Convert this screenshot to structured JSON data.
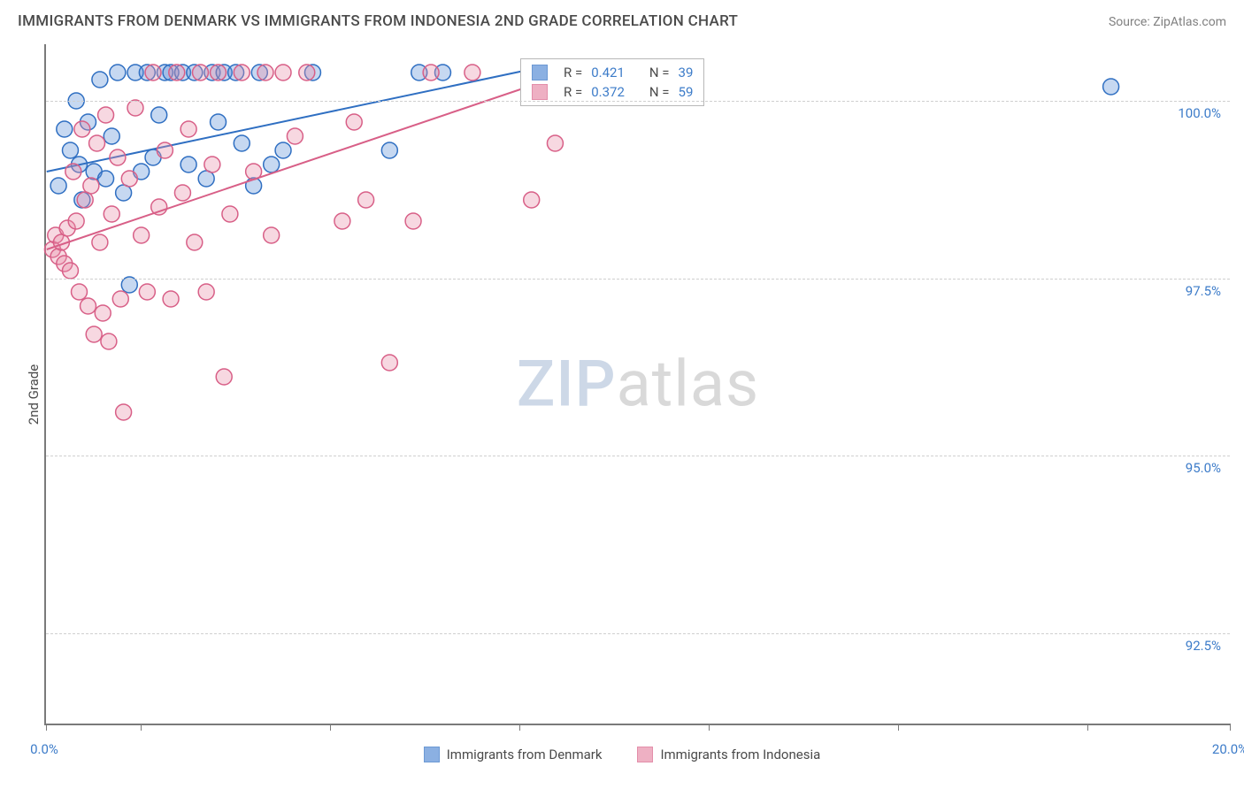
{
  "header": {
    "title": "IMMIGRANTS FROM DENMARK VS IMMIGRANTS FROM INDONESIA 2ND GRADE CORRELATION CHART",
    "source": "Source: ZipAtlas.com"
  },
  "ylabel": "2nd Grade",
  "watermark": {
    "part1": "ZIP",
    "part2": "atlas"
  },
  "chart": {
    "type": "scatter",
    "background_color": "#ffffff",
    "grid_color": "#cfcfcf",
    "axis_color": "#7a7a7a",
    "tick_label_color": "#3d7cc9",
    "label_fontsize": 15,
    "title_fontsize": 17,
    "xlim": [
      0.0,
      20.0
    ],
    "ylim": [
      91.2,
      100.8
    ],
    "yticks": [
      {
        "value": 100.0,
        "label": "100.0%"
      },
      {
        "value": 97.5,
        "label": "97.5%"
      },
      {
        "value": 95.0,
        "label": "95.0%"
      },
      {
        "value": 92.5,
        "label": "92.5%"
      }
    ],
    "xtick_positions_pct": [
      0,
      8,
      24,
      40,
      56,
      72,
      88,
      100
    ],
    "xtick_labels": {
      "left": "0.0%",
      "right": "20.0%"
    },
    "marker_radius": 9,
    "marker_stroke_width": 1.5,
    "marker_fill_opacity": 0.35,
    "trend_line_width": 2,
    "series": [
      {
        "name": "Immigrants from Denmark",
        "color": "#5b8fd6",
        "stroke": "#2f6fc2",
        "stats": {
          "R": "0.421",
          "N": "39"
        },
        "trend": {
          "x1": 0.0,
          "y1": 99.0,
          "x2": 8.5,
          "y2": 100.5
        },
        "points": [
          [
            0.2,
            98.8
          ],
          [
            0.3,
            99.6
          ],
          [
            0.4,
            99.3
          ],
          [
            0.5,
            100.0
          ],
          [
            0.55,
            99.1
          ],
          [
            0.6,
            98.6
          ],
          [
            0.7,
            99.7
          ],
          [
            0.8,
            99.0
          ],
          [
            0.9,
            100.3
          ],
          [
            1.0,
            98.9
          ],
          [
            1.1,
            99.5
          ],
          [
            1.2,
            100.4
          ],
          [
            1.3,
            98.7
          ],
          [
            1.4,
            97.4
          ],
          [
            1.5,
            100.4
          ],
          [
            1.6,
            99.0
          ],
          [
            1.7,
            100.4
          ],
          [
            1.8,
            99.2
          ],
          [
            1.9,
            99.8
          ],
          [
            2.0,
            100.4
          ],
          [
            2.1,
            100.4
          ],
          [
            2.3,
            100.4
          ],
          [
            2.4,
            99.1
          ],
          [
            2.5,
            100.4
          ],
          [
            2.7,
            98.9
          ],
          [
            2.8,
            100.4
          ],
          [
            2.9,
            99.7
          ],
          [
            3.0,
            100.4
          ],
          [
            3.2,
            100.4
          ],
          [
            3.3,
            99.4
          ],
          [
            3.5,
            98.8
          ],
          [
            3.6,
            100.4
          ],
          [
            3.8,
            99.1
          ],
          [
            4.0,
            99.3
          ],
          [
            4.5,
            100.4
          ],
          [
            5.8,
            99.3
          ],
          [
            6.3,
            100.4
          ],
          [
            6.7,
            100.4
          ],
          [
            18.0,
            100.2
          ]
        ]
      },
      {
        "name": "Immigrants from Indonesia",
        "color": "#e890aa",
        "stroke": "#d85f87",
        "stats": {
          "R": "0.372",
          "N": "59"
        },
        "trend": {
          "x1": 0.0,
          "y1": 97.9,
          "x2": 8.5,
          "y2": 100.3
        },
        "points": [
          [
            0.1,
            97.9
          ],
          [
            0.15,
            98.1
          ],
          [
            0.2,
            97.8
          ],
          [
            0.25,
            98.0
          ],
          [
            0.3,
            97.7
          ],
          [
            0.35,
            98.2
          ],
          [
            0.4,
            97.6
          ],
          [
            0.45,
            99.0
          ],
          [
            0.5,
            98.3
          ],
          [
            0.55,
            97.3
          ],
          [
            0.6,
            99.6
          ],
          [
            0.65,
            98.6
          ],
          [
            0.7,
            97.1
          ],
          [
            0.75,
            98.8
          ],
          [
            0.8,
            96.7
          ],
          [
            0.85,
            99.4
          ],
          [
            0.9,
            98.0
          ],
          [
            0.95,
            97.0
          ],
          [
            1.0,
            99.8
          ],
          [
            1.05,
            96.6
          ],
          [
            1.1,
            98.4
          ],
          [
            1.2,
            99.2
          ],
          [
            1.25,
            97.2
          ],
          [
            1.3,
            95.6
          ],
          [
            1.4,
            98.9
          ],
          [
            1.5,
            99.9
          ],
          [
            1.6,
            98.1
          ],
          [
            1.7,
            97.3
          ],
          [
            1.8,
            100.4
          ],
          [
            1.9,
            98.5
          ],
          [
            2.0,
            99.3
          ],
          [
            2.1,
            97.2
          ],
          [
            2.2,
            100.4
          ],
          [
            2.3,
            98.7
          ],
          [
            2.4,
            99.6
          ],
          [
            2.5,
            98.0
          ],
          [
            2.6,
            100.4
          ],
          [
            2.7,
            97.3
          ],
          [
            2.8,
            99.1
          ],
          [
            2.9,
            100.4
          ],
          [
            3.0,
            96.1
          ],
          [
            3.1,
            98.4
          ],
          [
            3.3,
            100.4
          ],
          [
            3.5,
            99.0
          ],
          [
            3.7,
            100.4
          ],
          [
            3.8,
            98.1
          ],
          [
            4.0,
            100.4
          ],
          [
            4.2,
            99.5
          ],
          [
            4.4,
            100.4
          ],
          [
            5.0,
            98.3
          ],
          [
            5.2,
            99.7
          ],
          [
            5.4,
            98.6
          ],
          [
            5.8,
            96.3
          ],
          [
            6.2,
            98.3
          ],
          [
            6.5,
            100.4
          ],
          [
            7.2,
            100.4
          ],
          [
            8.2,
            98.6
          ],
          [
            8.6,
            99.4
          ],
          [
            8.8,
            100.4
          ]
        ]
      }
    ]
  },
  "stats_box_labels": {
    "R": "R =",
    "N": "N ="
  }
}
